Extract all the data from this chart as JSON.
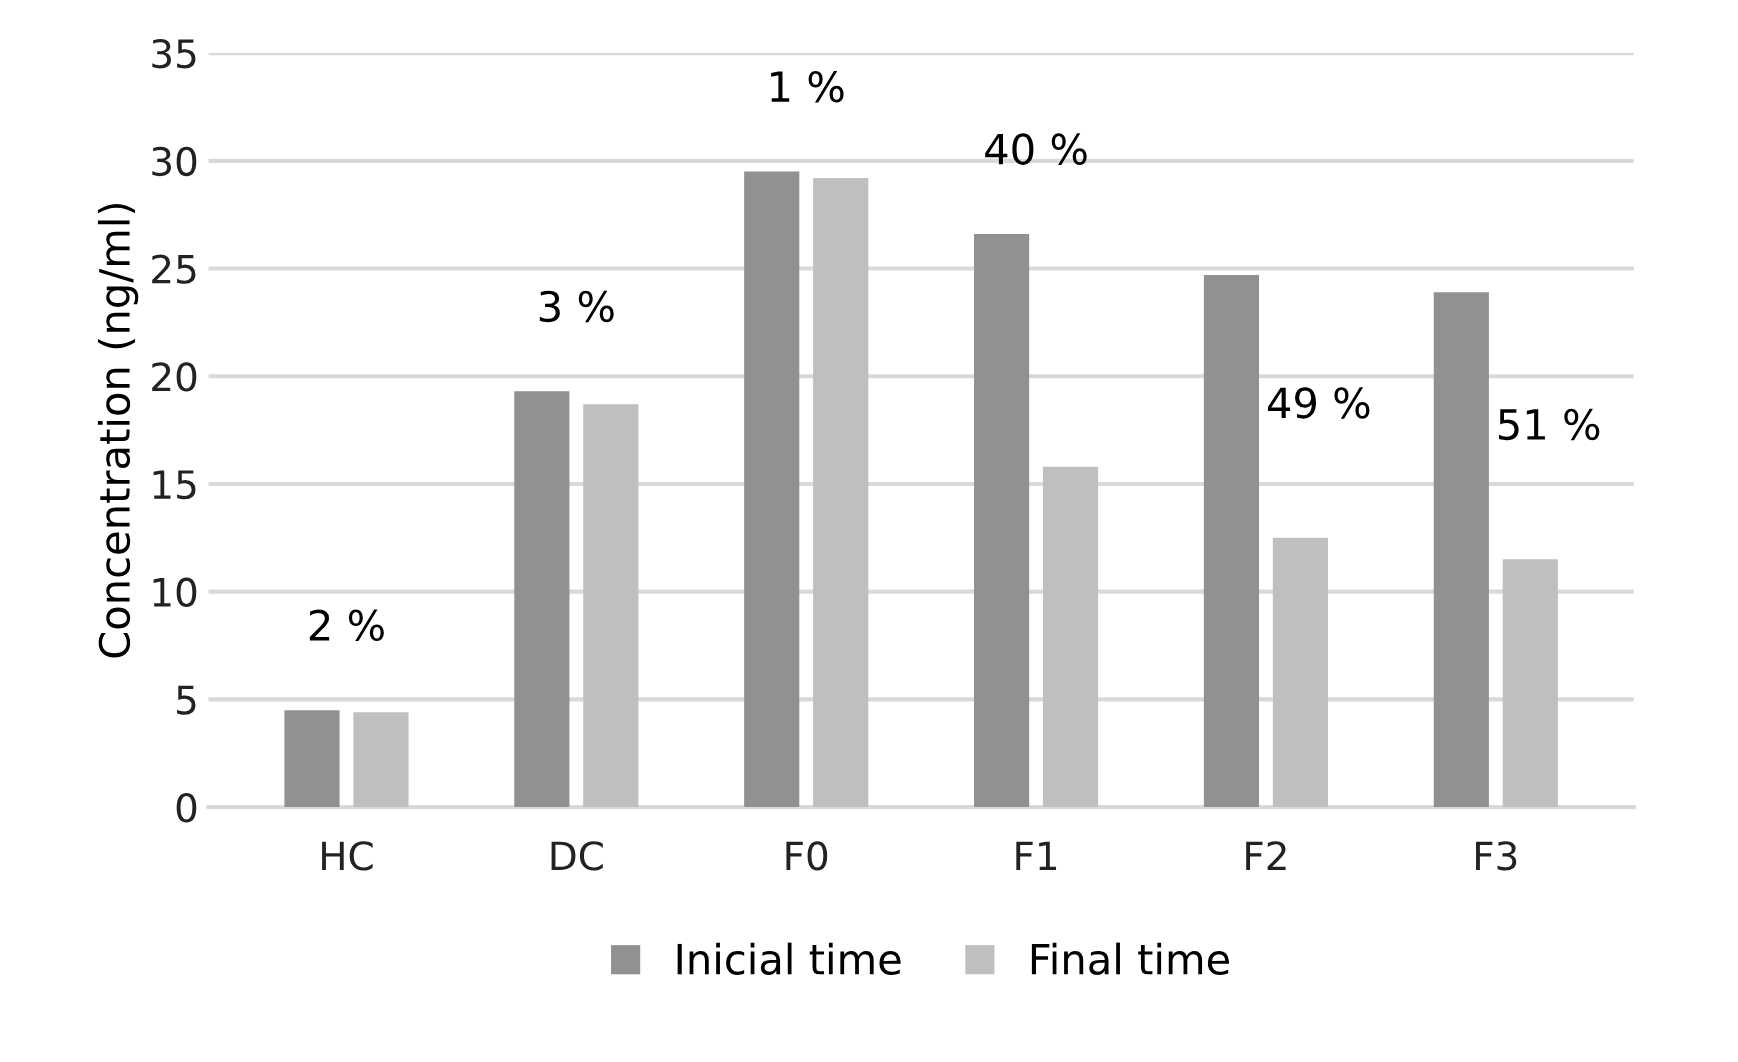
{
  "chart_data": {
    "type": "bar",
    "ylabel": "Concentration (ng/ml)",
    "categories": [
      "HC",
      "DC",
      "F0",
      "F1",
      "F2",
      "F3"
    ],
    "series": [
      {
        "name": "Inicial time",
        "color": "#919191",
        "values": [
          4.5,
          19.3,
          29.5,
          26.6,
          24.7,
          23.9
        ]
      },
      {
        "name": "Final time",
        "color": "#bfbfbf",
        "values": [
          4.4,
          18.7,
          29.2,
          15.8,
          12.5,
          11.5
        ]
      }
    ],
    "ylim": [
      0,
      35
    ],
    "yticks": [
      0,
      5,
      10,
      15,
      20,
      25,
      30,
      35
    ],
    "grid": "y",
    "legend": "bottom",
    "annotations": [
      "2 %",
      "3 %",
      "1 %",
      "40 %",
      "49 %",
      "51 %"
    ]
  }
}
